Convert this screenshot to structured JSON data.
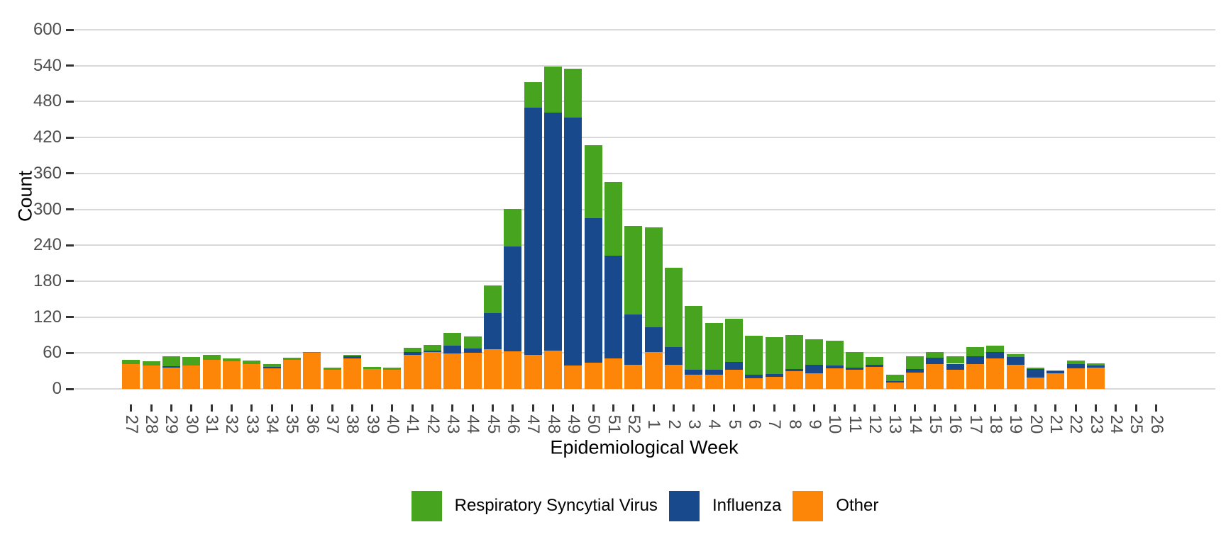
{
  "figure": {
    "x_axis_title": "Epidemiological Week",
    "y_axis_title": "Count"
  },
  "legend": {
    "position": "bottom-center",
    "items": [
      {
        "label": "Respiratory Syncytial Virus",
        "color": "#47A41E"
      },
      {
        "label": "Influenza",
        "color": "#17498C"
      },
      {
        "label": "Other",
        "color": "#FD8508"
      }
    ]
  },
  "chart_data": {
    "type": "bar",
    "stacked": true,
    "title": "",
    "xlabel": "Epidemiological Week",
    "ylabel": "Count",
    "ylim": [
      0,
      600
    ],
    "yticks": [
      0,
      60,
      120,
      180,
      240,
      300,
      360,
      420,
      480,
      540,
      600
    ],
    "grid": true,
    "grid_color": "#d8d8d8",
    "legend_position": "bottom",
    "categories": [
      "27",
      "28",
      "29",
      "30",
      "31",
      "32",
      "33",
      "34",
      "35",
      "36",
      "37",
      "38",
      "39",
      "40",
      "41",
      "42",
      "43",
      "44",
      "45",
      "46",
      "47",
      "48",
      "49",
      "50",
      "51",
      "52",
      "1",
      "2",
      "3",
      "4",
      "5",
      "6",
      "7",
      "8",
      "9",
      "10",
      "11",
      "12",
      "13",
      "14",
      "15",
      "16",
      "17",
      "18",
      "19",
      "20",
      "21",
      "22",
      "23",
      "24",
      "25",
      "26"
    ],
    "series": [
      {
        "name": "Other",
        "color": "#FD8508",
        "values": [
          41,
          39,
          36,
          39,
          49,
          46,
          42,
          34,
          48,
          60,
          32,
          51,
          33,
          32,
          57,
          62,
          59,
          60,
          66,
          63,
          57,
          64,
          39,
          44,
          51,
          40,
          61,
          40,
          24,
          24,
          32,
          18,
          20,
          30,
          26,
          34,
          32,
          37,
          11,
          27,
          41,
          32,
          41,
          51,
          40,
          19,
          26,
          34,
          35,
          0,
          0,
          0
        ]
      },
      {
        "name": "Influenza",
        "color": "#17498C",
        "values": [
          0,
          0,
          2,
          0,
          0,
          0,
          0,
          3,
          0,
          0,
          0,
          4,
          0,
          0,
          4,
          2,
          13,
          8,
          61,
          175,
          413,
          397,
          414,
          241,
          172,
          84,
          42,
          30,
          8,
          8,
          13,
          6,
          5,
          3,
          14,
          5,
          3,
          3,
          2,
          6,
          11,
          10,
          13,
          10,
          13,
          14,
          3,
          8,
          4,
          0,
          0,
          0
        ]
      },
      {
        "name": "Respiratory Syncytial Virus",
        "color": "#47A41E",
        "values": [
          7,
          7,
          17,
          14,
          8,
          5,
          5,
          5,
          4,
          2,
          4,
          2,
          4,
          3,
          8,
          9,
          22,
          20,
          46,
          63,
          43,
          77,
          82,
          122,
          122,
          148,
          167,
          132,
          107,
          78,
          72,
          65,
          61,
          57,
          43,
          41,
          26,
          13,
          11,
          22,
          10,
          12,
          16,
          11,
          5,
          2,
          2,
          5,
          4,
          0,
          0,
          0
        ]
      }
    ]
  }
}
